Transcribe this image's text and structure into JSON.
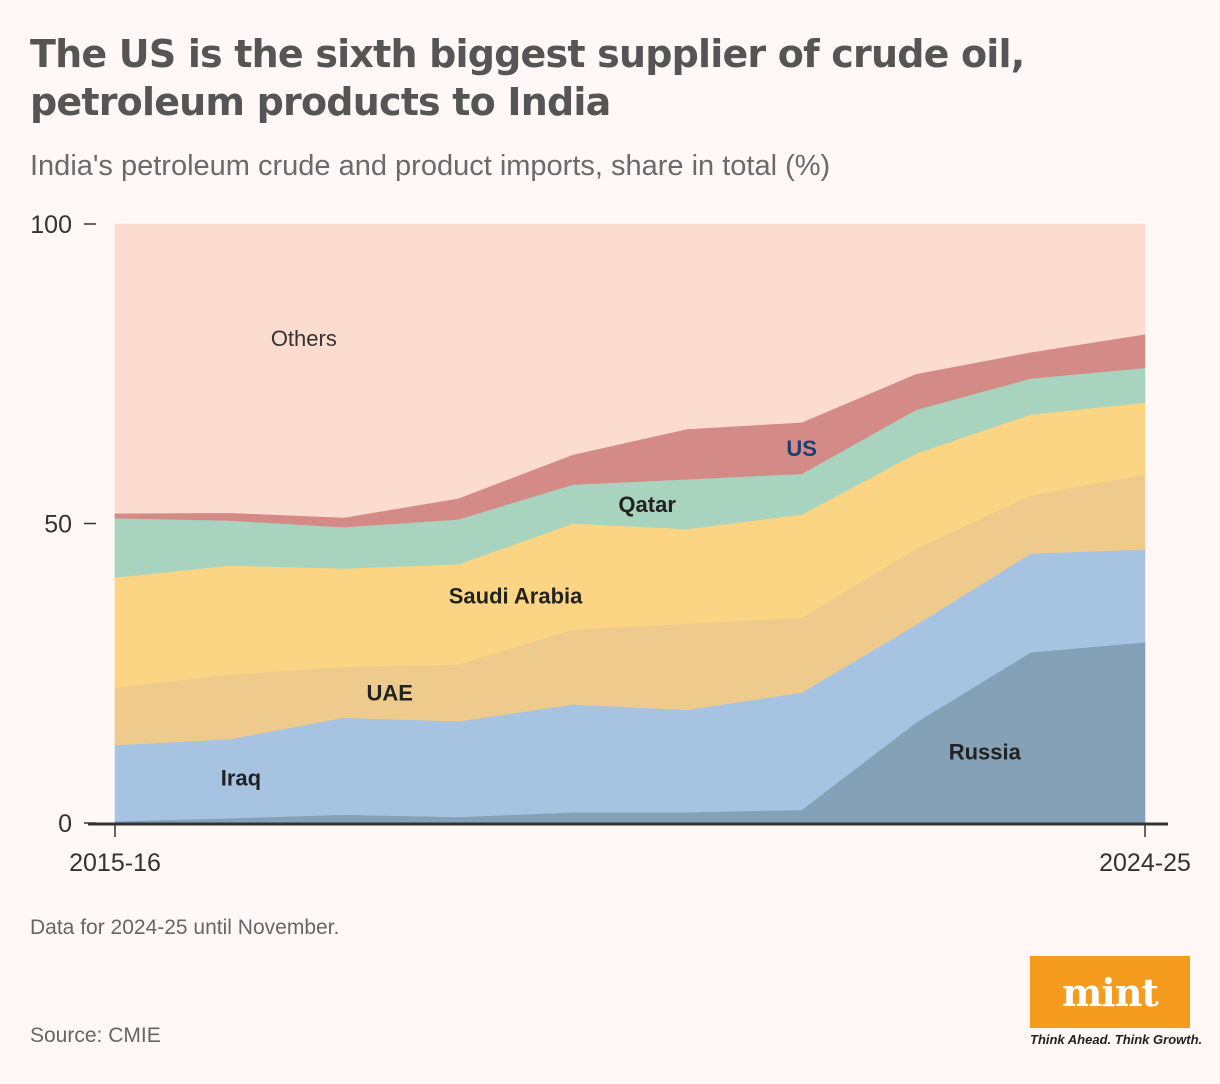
{
  "header": {
    "title": "The US is the sixth biggest supplier of crude oil, petroleum products to India",
    "subtitle": "India's petroleum crude and product imports, share in total (%)"
  },
  "footer": {
    "note": "Data for 2024-25 until November.",
    "source": "Source: CMIE"
  },
  "logo": {
    "text": "mint",
    "tagline": "Think Ahead. Think Growth.",
    "color": "#f59b1e"
  },
  "chart_data": {
    "type": "area",
    "stacked": true,
    "x_labels": [
      "2015-16",
      "2024-25"
    ],
    "n_periods": 10,
    "ylim": [
      0,
      100
    ],
    "yticks": [
      0,
      50,
      100
    ],
    "series": [
      {
        "name": "Russia",
        "color": "#84a1b8",
        "label_color": "#222",
        "values": [
          0.3,
          0.8,
          1.4,
          1.0,
          1.8,
          1.8,
          2.2,
          16.8,
          28.5,
          30.2
        ]
      },
      {
        "name": "Iraq",
        "color": "#a6c4e2",
        "label_color": "#222",
        "values": [
          12.7,
          13.2,
          16.2,
          16.0,
          18.0,
          17.1,
          19.6,
          16.3,
          16.5,
          15.5
        ]
      },
      {
        "name": "UAE",
        "color": "#eecb8c",
        "label_color": "#222",
        "values": [
          9.6,
          10.8,
          8.5,
          9.5,
          12.5,
          14.4,
          12.5,
          12.7,
          9.7,
          12.5
        ]
      },
      {
        "name": "Saudi Arabia",
        "color": "#fbd583",
        "label_color": "#222",
        "values": [
          18.4,
          18.2,
          16.4,
          16.7,
          17.7,
          15.8,
          17.2,
          15.9,
          13.5,
          12.0
        ]
      },
      {
        "name": "Qatar",
        "color": "#a7d3bf",
        "label_color": "#222",
        "values": [
          9.9,
          7.5,
          6.9,
          7.5,
          6.5,
          8.3,
          6.8,
          7.3,
          6.0,
          5.8
        ]
      },
      {
        "name": "US",
        "color": "#d48b88",
        "label_color": "#1d3f6e",
        "values": [
          0.8,
          1.3,
          1.6,
          3.5,
          5.0,
          8.4,
          8.6,
          6.0,
          4.4,
          5.6
        ]
      },
      {
        "name": "Others",
        "color": "#fcdcce",
        "label_color": "#333",
        "values": [
          48.3,
          48.2,
          49.0,
          45.8,
          38.5,
          34.2,
          33.1,
          25.0,
          21.4,
          18.4
        ]
      }
    ]
  }
}
